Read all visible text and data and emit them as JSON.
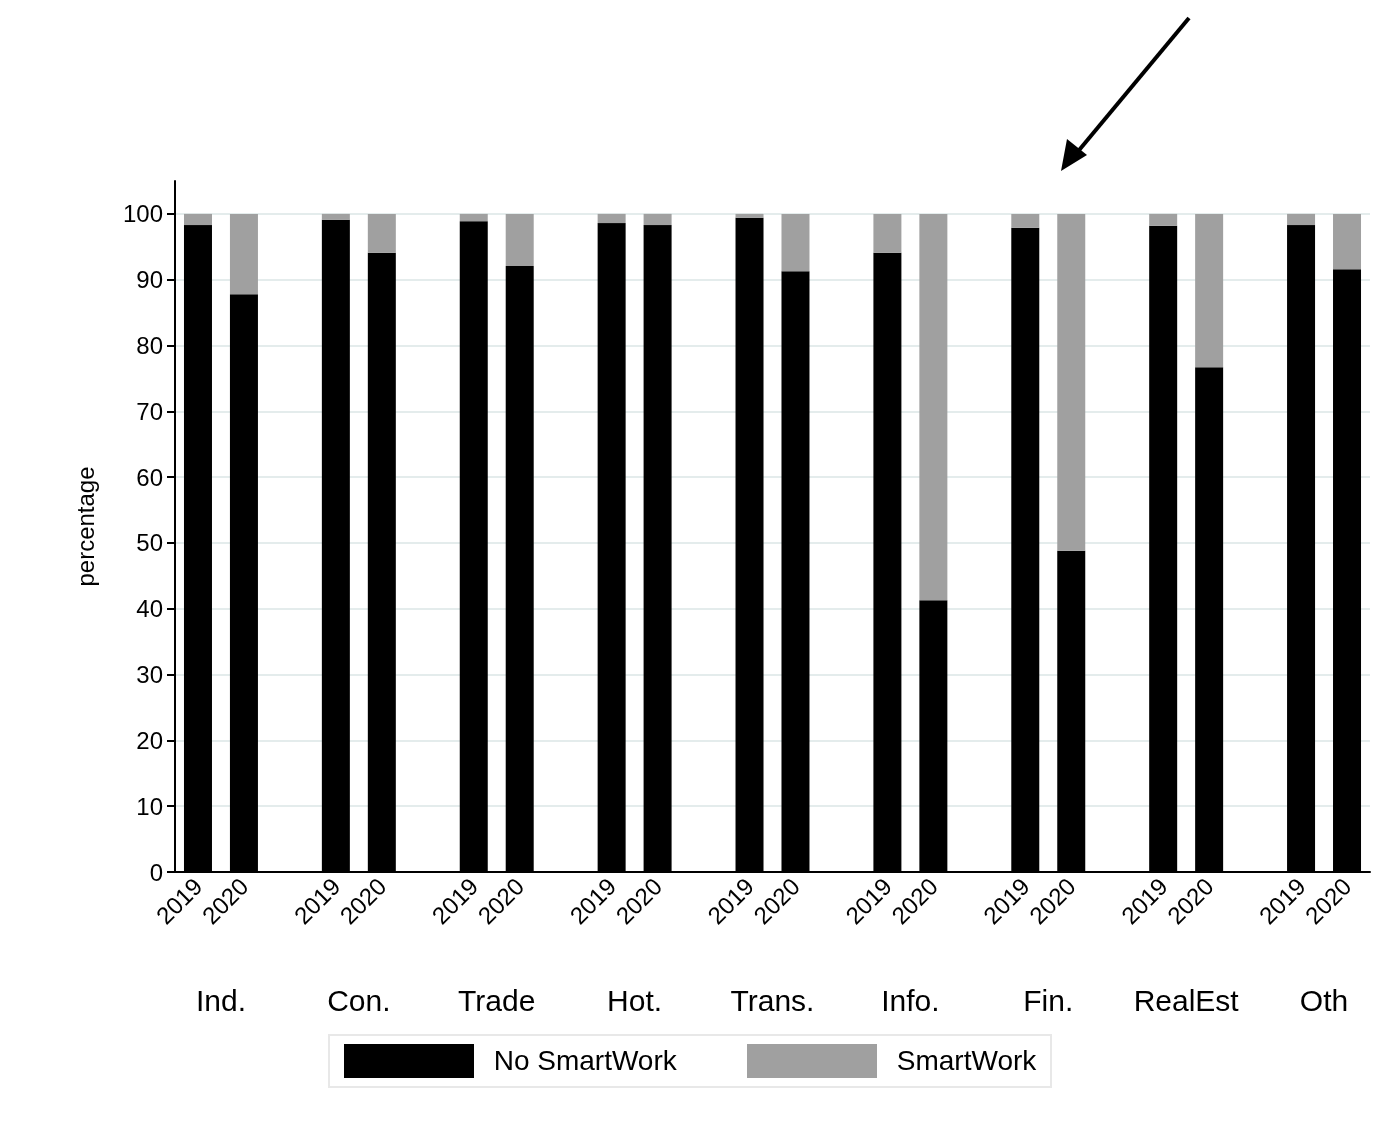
{
  "chart_data": {
    "type": "bar",
    "stacked": true,
    "categories": [
      "2019",
      "2020",
      null,
      "2019",
      "2020",
      null,
      "2019",
      "2020",
      null,
      "2019",
      "2020",
      null,
      "2019",
      "2020",
      null,
      "2019",
      "2020",
      null,
      "2019",
      "2020",
      null,
      "2019",
      "2020",
      null,
      "2019",
      "2020"
    ],
    "series": [
      {
        "name": "No SmartWork",
        "color": "#000000",
        "values": [
          98.3,
          87.8,
          null,
          99.1,
          94.1,
          null,
          98.9,
          92.1,
          null,
          98.6,
          98.3,
          null,
          99.4,
          91.3,
          null,
          94.1,
          41.3,
          null,
          97.9,
          48.8,
          null,
          98.2,
          76.7,
          null,
          98.3,
          91.6
        ]
      },
      {
        "name": "SmartWork",
        "color": "#a0a0a0",
        "values": [
          1.7,
          12.2,
          null,
          0.9,
          5.9,
          null,
          1.1,
          7.9,
          null,
          1.4,
          1.7,
          null,
          0.6,
          8.7,
          null,
          5.9,
          58.7,
          null,
          2.1,
          51.2,
          null,
          1.8,
          23.3,
          null,
          1.7,
          8.4
        ]
      }
    ],
    "annotations": [
      "Ind.",
      "Con.",
      "Trade",
      "Hot.",
      "Trans.",
      "Info.",
      "Fin.",
      "RealEst",
      "Oth"
    ],
    "ylabel": "percentage",
    "ylim": [
      0,
      105
    ],
    "yticks": [
      0,
      10,
      20,
      30,
      40,
      50,
      60,
      70,
      80,
      90,
      100
    ],
    "grid": "y",
    "legend": "bottom"
  }
}
